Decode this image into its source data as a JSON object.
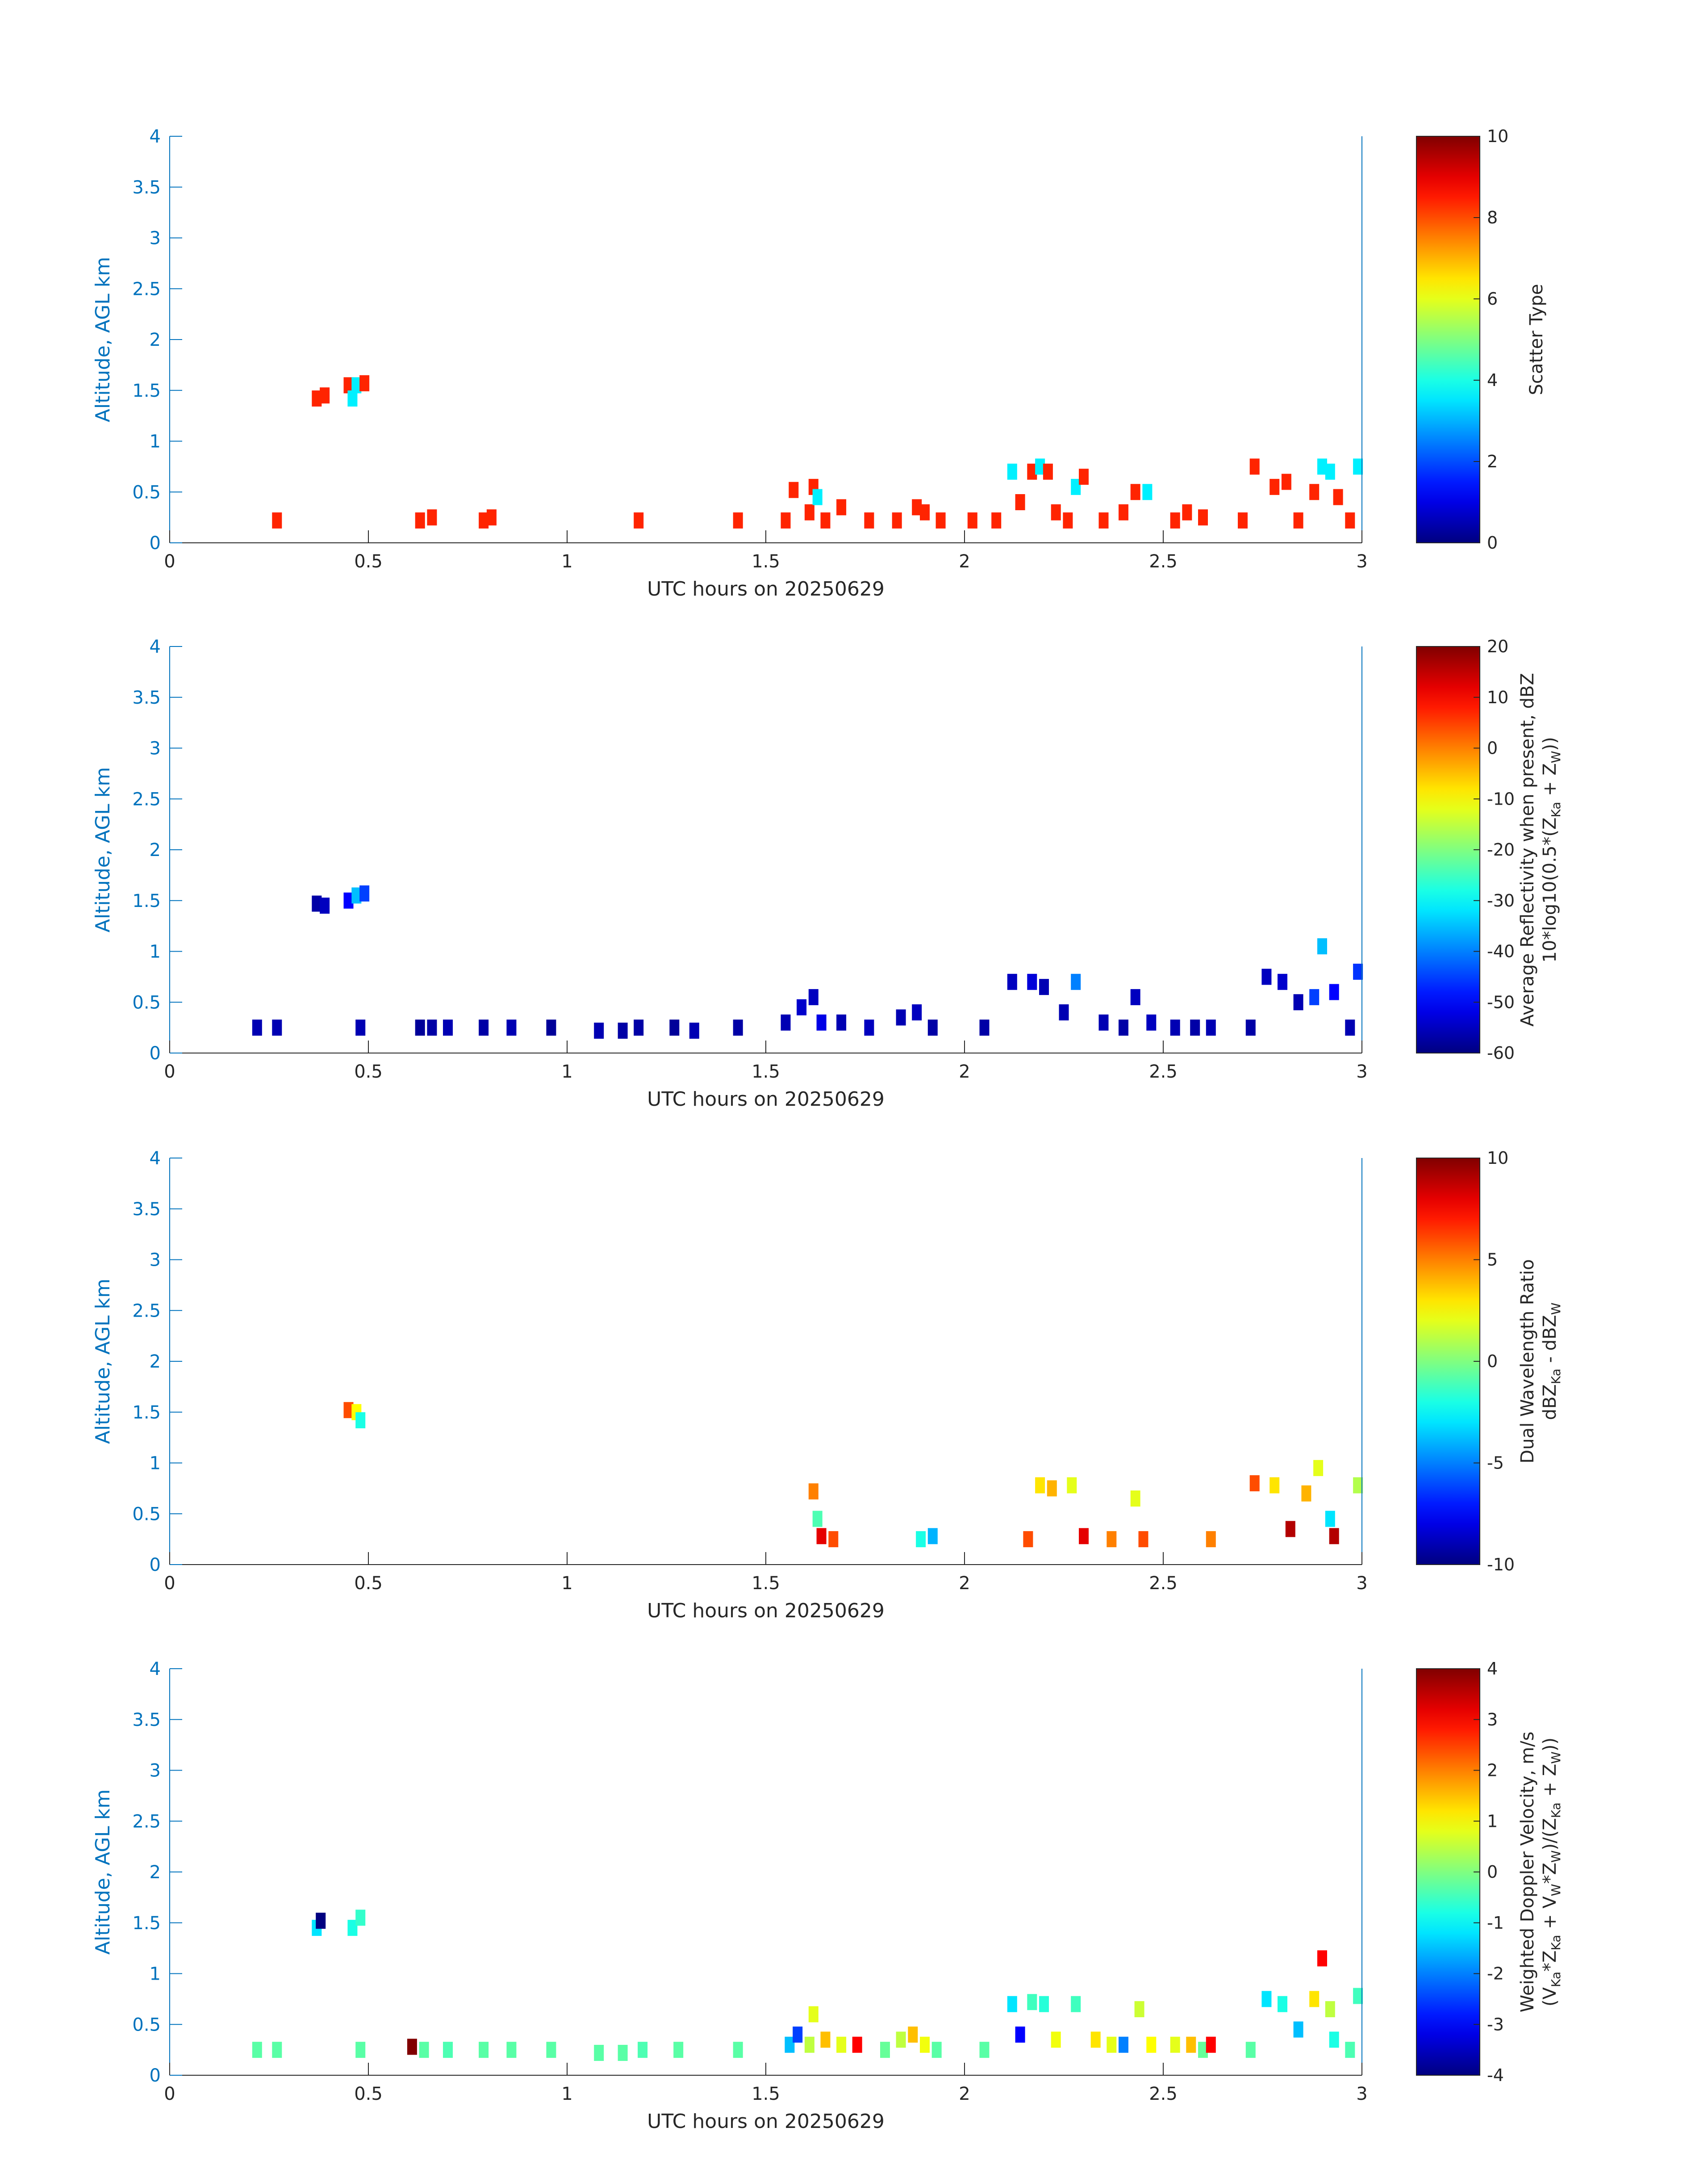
{
  "figure_date": "20250629",
  "chart_data": [
    {
      "type": "heatmap",
      "panel": "scatter-type",
      "xlabel": "UTC hours on 20250629",
      "ylabel": "Altitude, AGL km",
      "xlim": [
        0,
        3
      ],
      "ylim": [
        0,
        4
      ],
      "xticks": [
        0,
        0.5,
        1,
        1.5,
        2,
        2.5,
        3
      ],
      "xtick_labels": [
        "0",
        "0.5",
        "1",
        "1.5",
        "2",
        "2.5",
        "3"
      ],
      "yticks": [
        0,
        0.5,
        1,
        1.5,
        2,
        2.5,
        3,
        3.5,
        4
      ],
      "ytick_labels": [
        "0",
        "0.5",
        "1",
        "1.5",
        "2",
        "2.5",
        "3",
        "3.5",
        "4"
      ],
      "colorbar": {
        "clim": [
          0,
          10
        ],
        "ticks": [
          0,
          2,
          4,
          6,
          8,
          10
        ],
        "tick_labels": [
          "0",
          "2",
          "4",
          "6",
          "8",
          "10"
        ],
        "title_lines": [
          "Scatter Type"
        ]
      },
      "cells": [
        [
          0.27,
          0.22,
          8.4
        ],
        [
          0.37,
          1.42,
          8.4
        ],
        [
          0.39,
          1.45,
          8.4
        ],
        [
          0.45,
          1.55,
          8.4
        ],
        [
          0.46,
          1.42,
          3.6
        ],
        [
          0.47,
          1.55,
          3.6
        ],
        [
          0.49,
          1.57,
          8.4
        ],
        [
          0.63,
          0.22,
          8.4
        ],
        [
          0.66,
          0.25,
          8.4
        ],
        [
          0.79,
          0.22,
          8.4
        ],
        [
          0.81,
          0.25,
          8.4
        ],
        [
          1.18,
          0.22,
          8.4
        ],
        [
          1.43,
          0.22,
          8.4
        ],
        [
          1.55,
          0.22,
          8.4
        ],
        [
          1.57,
          0.52,
          8.4
        ],
        [
          1.61,
          0.3,
          8.4
        ],
        [
          1.62,
          0.55,
          8.4
        ],
        [
          1.63,
          0.45,
          3.6
        ],
        [
          1.65,
          0.22,
          8.4
        ],
        [
          1.69,
          0.35,
          8.4
        ],
        [
          1.76,
          0.22,
          8.4
        ],
        [
          1.83,
          0.22,
          8.4
        ],
        [
          1.88,
          0.35,
          8.4
        ],
        [
          1.9,
          0.3,
          8.4
        ],
        [
          1.94,
          0.22,
          8.4
        ],
        [
          2.02,
          0.22,
          8.4
        ],
        [
          2.08,
          0.22,
          8.4
        ],
        [
          2.12,
          0.7,
          3.6
        ],
        [
          2.14,
          0.4,
          8.4
        ],
        [
          2.17,
          0.7,
          8.4
        ],
        [
          2.19,
          0.75,
          3.6
        ],
        [
          2.21,
          0.7,
          8.4
        ],
        [
          2.23,
          0.3,
          8.4
        ],
        [
          2.26,
          0.22,
          8.4
        ],
        [
          2.28,
          0.55,
          3.6
        ],
        [
          2.3,
          0.65,
          8.4
        ],
        [
          2.35,
          0.22,
          8.4
        ],
        [
          2.4,
          0.3,
          8.4
        ],
        [
          2.43,
          0.5,
          8.4
        ],
        [
          2.46,
          0.5,
          3.6
        ],
        [
          2.53,
          0.22,
          8.4
        ],
        [
          2.56,
          0.3,
          8.4
        ],
        [
          2.6,
          0.25,
          8.4
        ],
        [
          2.7,
          0.22,
          8.4
        ],
        [
          2.73,
          0.75,
          8.4
        ],
        [
          2.78,
          0.55,
          8.4
        ],
        [
          2.81,
          0.6,
          8.4
        ],
        [
          2.84,
          0.22,
          8.4
        ],
        [
          2.88,
          0.5,
          8.4
        ],
        [
          2.9,
          0.75,
          3.6
        ],
        [
          2.92,
          0.7,
          3.6
        ],
        [
          2.94,
          0.45,
          8.4
        ],
        [
          2.97,
          0.22,
          8.4
        ],
        [
          2.99,
          0.75,
          3.6
        ]
      ]
    },
    {
      "type": "heatmap",
      "panel": "average-reflectivity",
      "xlabel": "UTC hours on 20250629",
      "ylabel": "Altitude, AGL km",
      "xlim": [
        0,
        3
      ],
      "ylim": [
        0,
        4
      ],
      "xticks": [
        0,
        0.5,
        1,
        1.5,
        2,
        2.5,
        3
      ],
      "xtick_labels": [
        "0",
        "0.5",
        "1",
        "1.5",
        "2",
        "2.5",
        "3"
      ],
      "yticks": [
        0,
        0.5,
        1,
        1.5,
        2,
        2.5,
        3,
        3.5,
        4
      ],
      "ytick_labels": [
        "0",
        "0.5",
        "1",
        "1.5",
        "2",
        "2.5",
        "3",
        "3.5",
        "4"
      ],
      "colorbar": {
        "clim": [
          -60,
          20
        ],
        "ticks": [
          -60,
          -50,
          -40,
          -30,
          -20,
          -10,
          0,
          10,
          20
        ],
        "tick_labels": [
          "-60",
          "-50",
          "-40",
          "-30",
          "-20",
          "-10",
          "0",
          "10",
          "20"
        ],
        "title_lines": [
          "Average Reflectivity when present, dBZ",
          "10*log10(0.5*(Z",
          "Ka",
          " + Z",
          "W",
          "))"
        ]
      },
      "cells": [
        [
          0.22,
          0.25,
          -56
        ],
        [
          0.27,
          0.25,
          -56
        ],
        [
          0.37,
          1.47,
          -57
        ],
        [
          0.39,
          1.45,
          -55
        ],
        [
          0.45,
          1.5,
          -50
        ],
        [
          0.47,
          1.55,
          -35
        ],
        [
          0.49,
          1.57,
          -45
        ],
        [
          0.48,
          0.25,
          -56
        ],
        [
          0.63,
          0.25,
          -58
        ],
        [
          0.66,
          0.25,
          -57
        ],
        [
          0.7,
          0.25,
          -56
        ],
        [
          0.79,
          0.25,
          -57
        ],
        [
          0.86,
          0.25,
          -56
        ],
        [
          0.96,
          0.25,
          -58
        ],
        [
          1.08,
          0.22,
          -56
        ],
        [
          1.14,
          0.22,
          -57
        ],
        [
          1.18,
          0.25,
          -57
        ],
        [
          1.27,
          0.25,
          -58
        ],
        [
          1.32,
          0.22,
          -56
        ],
        [
          1.43,
          0.25,
          -57
        ],
        [
          1.55,
          0.3,
          -56
        ],
        [
          1.59,
          0.45,
          -54
        ],
        [
          1.62,
          0.55,
          -55
        ],
        [
          1.64,
          0.3,
          -52
        ],
        [
          1.69,
          0.3,
          -56
        ],
        [
          1.76,
          0.25,
          -55
        ],
        [
          1.84,
          0.35,
          -56
        ],
        [
          1.88,
          0.4,
          -55
        ],
        [
          1.92,
          0.25,
          -57
        ],
        [
          2.05,
          0.25,
          -57
        ],
        [
          2.12,
          0.7,
          -55
        ],
        [
          2.17,
          0.7,
          -53
        ],
        [
          2.2,
          0.65,
          -56
        ],
        [
          2.25,
          0.4,
          -56
        ],
        [
          2.28,
          0.7,
          -40
        ],
        [
          2.35,
          0.3,
          -56
        ],
        [
          2.4,
          0.25,
          -57
        ],
        [
          2.43,
          0.55,
          -55
        ],
        [
          2.47,
          0.3,
          -55
        ],
        [
          2.53,
          0.25,
          -56
        ],
        [
          2.58,
          0.25,
          -57
        ],
        [
          2.62,
          0.25,
          -56
        ],
        [
          2.72,
          0.25,
          -57
        ],
        [
          2.76,
          0.75,
          -55
        ],
        [
          2.8,
          0.7,
          -54
        ],
        [
          2.84,
          0.5,
          -56
        ],
        [
          2.88,
          0.55,
          -45
        ],
        [
          2.9,
          1.05,
          -35
        ],
        [
          2.93,
          0.6,
          -50
        ],
        [
          2.97,
          0.25,
          -56
        ],
        [
          2.99,
          0.8,
          -46
        ]
      ]
    },
    {
      "type": "heatmap",
      "panel": "dual-wavelength-ratio",
      "xlabel": "UTC hours on 20250629",
      "ylabel": "Altitude, AGL km",
      "xlim": [
        0,
        3
      ],
      "ylim": [
        0,
        4
      ],
      "xticks": [
        0,
        0.5,
        1,
        1.5,
        2,
        2.5,
        3
      ],
      "xtick_labels": [
        "0",
        "0.5",
        "1",
        "1.5",
        "2",
        "2.5",
        "3"
      ],
      "yticks": [
        0,
        0.5,
        1,
        1.5,
        2,
        2.5,
        3,
        3.5,
        4
      ],
      "ytick_labels": [
        "0",
        "0.5",
        "1",
        "1.5",
        "2",
        "2.5",
        "3",
        "3.5",
        "4"
      ],
      "colorbar": {
        "clim": [
          -10,
          10
        ],
        "ticks": [
          -10,
          -5,
          0,
          5,
          10
        ],
        "tick_labels": [
          "-10",
          "-5",
          "0",
          "5",
          "10"
        ],
        "title_lines": [
          "Dual Wavelength Ratio",
          "dBZ",
          "Ka",
          " - dBZ",
          "W"
        ]
      },
      "cells": [
        [
          0.45,
          1.52,
          6
        ],
        [
          0.47,
          1.5,
          2.5
        ],
        [
          0.48,
          1.42,
          -2
        ],
        [
          1.62,
          0.72,
          5
        ],
        [
          1.63,
          0.45,
          -1
        ],
        [
          1.64,
          0.28,
          8
        ],
        [
          1.67,
          0.25,
          6
        ],
        [
          1.89,
          0.25,
          -2
        ],
        [
          1.92,
          0.28,
          -4
        ],
        [
          2.16,
          0.25,
          6
        ],
        [
          2.19,
          0.78,
          3
        ],
        [
          2.22,
          0.75,
          4
        ],
        [
          2.27,
          0.78,
          2
        ],
        [
          2.3,
          0.28,
          8
        ],
        [
          2.37,
          0.25,
          5
        ],
        [
          2.43,
          0.65,
          2
        ],
        [
          2.45,
          0.25,
          6
        ],
        [
          2.62,
          0.25,
          5
        ],
        [
          2.73,
          0.8,
          6
        ],
        [
          2.78,
          0.78,
          3
        ],
        [
          2.82,
          0.35,
          9
        ],
        [
          2.86,
          0.7,
          4
        ],
        [
          2.89,
          0.95,
          2
        ],
        [
          2.92,
          0.45,
          -3
        ],
        [
          2.93,
          0.28,
          9
        ],
        [
          2.99,
          0.78,
          1
        ]
      ]
    },
    {
      "type": "heatmap",
      "panel": "weighted-doppler-velocity",
      "xlabel": "UTC hours on 20250629",
      "ylabel": "Altitude, AGL km",
      "xlim": [
        0,
        3
      ],
      "ylim": [
        0,
        4
      ],
      "xticks": [
        0,
        0.5,
        1,
        1.5,
        2,
        2.5,
        3
      ],
      "xtick_labels": [
        "0",
        "0.5",
        "1",
        "1.5",
        "2",
        "2.5",
        "3"
      ],
      "yticks": [
        0,
        0.5,
        1,
        1.5,
        2,
        2.5,
        3,
        3.5,
        4
      ],
      "ytick_labels": [
        "0",
        "0.5",
        "1",
        "1.5",
        "2",
        "2.5",
        "3",
        "3.5",
        "4"
      ],
      "colorbar": {
        "clim": [
          -4,
          4
        ],
        "ticks": [
          -4,
          -3,
          -2,
          -1,
          0,
          1,
          2,
          3,
          4
        ],
        "tick_labels": [
          "-4",
          "-3",
          "-2",
          "-1",
          "0",
          "1",
          "2",
          "3",
          "4"
        ],
        "title_lines": [
          "Weighted Doppler Velocity, m/s",
          "(V",
          "Ka",
          "*Z",
          "Ka",
          " + V",
          "W",
          "*Z",
          "W",
          ")/(Z",
          "Ka",
          " + Z",
          "W",
          "))"
        ]
      },
      "cells": [
        [
          0.22,
          0.25,
          -0.3
        ],
        [
          0.27,
          0.25,
          -0.3
        ],
        [
          0.37,
          1.45,
          -1.2
        ],
        [
          0.38,
          1.52,
          -4
        ],
        [
          0.46,
          1.45,
          -0.8
        ],
        [
          0.48,
          1.55,
          -0.6
        ],
        [
          0.48,
          0.25,
          -0.3
        ],
        [
          0.61,
          0.28,
          4
        ],
        [
          0.64,
          0.25,
          -0.3
        ],
        [
          0.7,
          0.25,
          -0.4
        ],
        [
          0.79,
          0.25,
          -0.3
        ],
        [
          0.86,
          0.25,
          -0.3
        ],
        [
          0.96,
          0.25,
          -0.3
        ],
        [
          1.08,
          0.22,
          -0.3
        ],
        [
          1.14,
          0.22,
          -0.3
        ],
        [
          1.19,
          0.25,
          -0.4
        ],
        [
          1.28,
          0.25,
          -0.3
        ],
        [
          1.43,
          0.25,
          -0.3
        ],
        [
          1.56,
          0.3,
          -1.5
        ],
        [
          1.58,
          0.4,
          -2.5
        ],
        [
          1.61,
          0.3,
          0.5
        ],
        [
          1.62,
          0.6,
          0.8
        ],
        [
          1.65,
          0.35,
          1.5
        ],
        [
          1.69,
          0.3,
          0.8
        ],
        [
          1.73,
          0.3,
          3
        ],
        [
          1.8,
          0.25,
          -0.2
        ],
        [
          1.84,
          0.35,
          0.5
        ],
        [
          1.87,
          0.4,
          1.5
        ],
        [
          1.9,
          0.3,
          0.9
        ],
        [
          1.93,
          0.25,
          -0.3
        ],
        [
          2.05,
          0.25,
          -0.3
        ],
        [
          2.12,
          0.7,
          -1.2
        ],
        [
          2.14,
          0.4,
          -3
        ],
        [
          2.17,
          0.72,
          -0.5
        ],
        [
          2.2,
          0.7,
          -0.7
        ],
        [
          2.23,
          0.35,
          0.9
        ],
        [
          2.28,
          0.7,
          -0.5
        ],
        [
          2.33,
          0.35,
          1.2
        ],
        [
          2.37,
          0.3,
          0.8
        ],
        [
          2.4,
          0.3,
          -2
        ],
        [
          2.44,
          0.65,
          0.6
        ],
        [
          2.47,
          0.3,
          1
        ],
        [
          2.53,
          0.3,
          0.8
        ],
        [
          2.57,
          0.3,
          1.5
        ],
        [
          2.6,
          0.25,
          -0.2
        ],
        [
          2.62,
          0.3,
          3
        ],
        [
          2.72,
          0.25,
          -0.3
        ],
        [
          2.76,
          0.75,
          -1.2
        ],
        [
          2.8,
          0.7,
          -0.8
        ],
        [
          2.84,
          0.45,
          -1.5
        ],
        [
          2.88,
          0.75,
          1.2
        ],
        [
          2.9,
          1.15,
          3
        ],
        [
          2.92,
          0.65,
          0.5
        ],
        [
          2.93,
          0.35,
          -0.8
        ],
        [
          2.97,
          0.25,
          -0.4
        ],
        [
          2.99,
          0.78,
          -0.5
        ]
      ]
    }
  ]
}
